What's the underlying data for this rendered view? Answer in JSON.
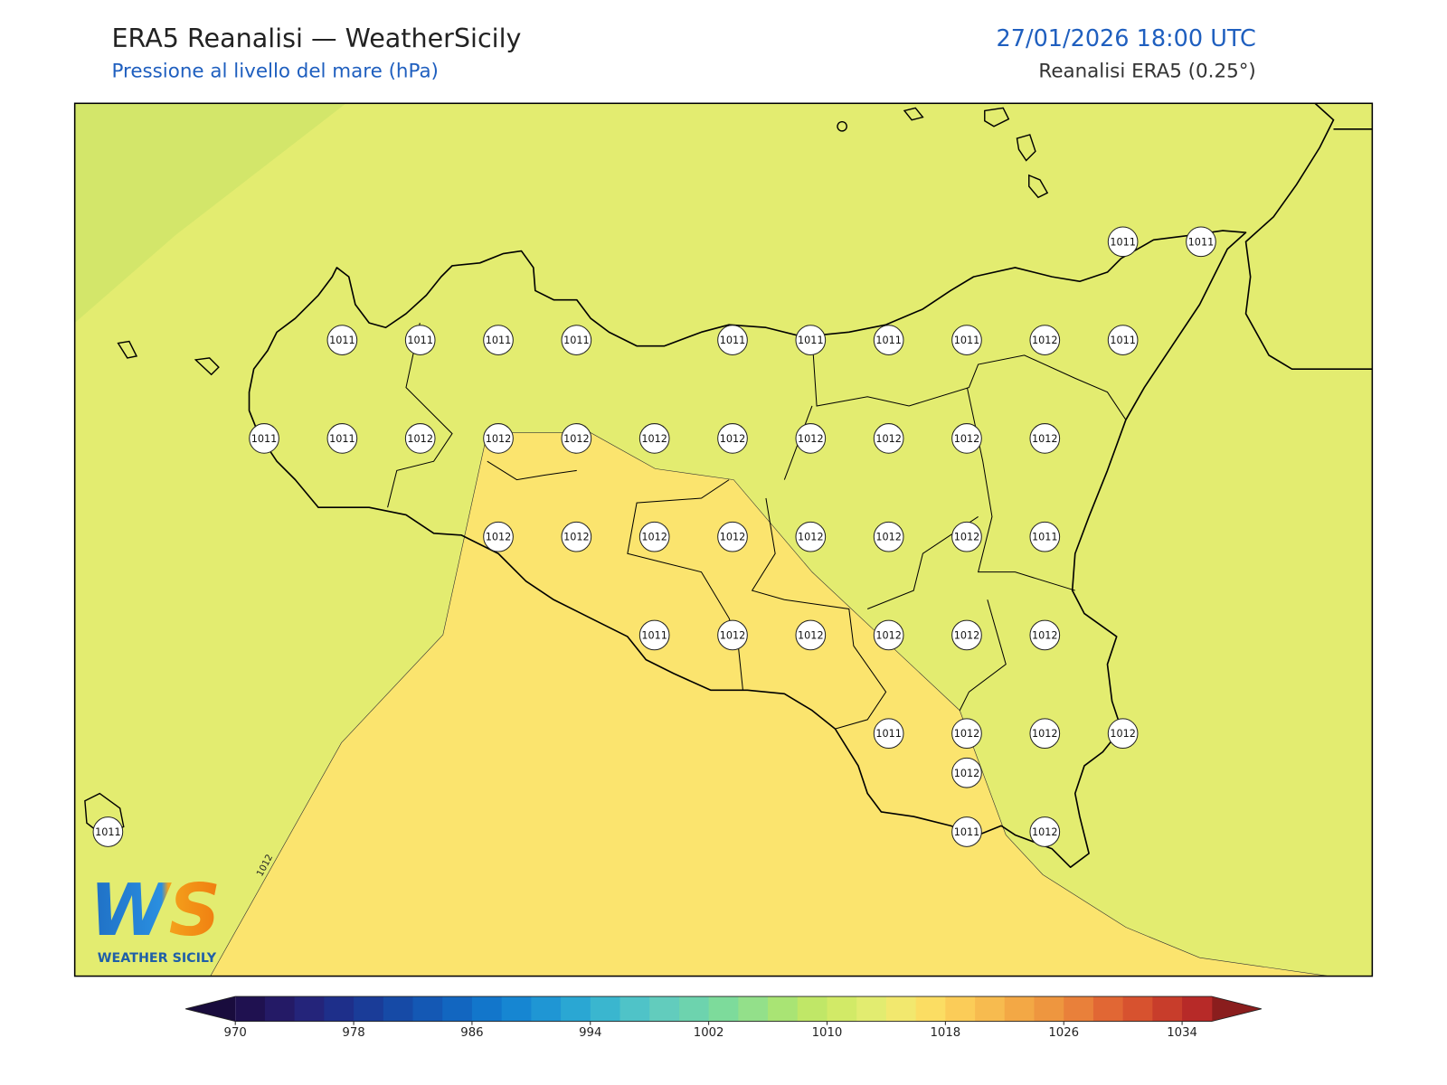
{
  "header": {
    "title": "ERA5 Reanalisi — WeatherSicily",
    "subtitle": "Pressione al livello del mare (hPa)",
    "datetime": "27/01/2026 18:00 UTC",
    "source": "Reanalisi ERA5 (0.25°)"
  },
  "map": {
    "stations": [
      1011,
      1011,
      1011,
      1011,
      1011,
      1011,
      1011,
      1011,
      1011,
      1011,
      1012,
      1011,
      1011,
      1011,
      1012,
      1012,
      1012,
      1012,
      1012,
      1012,
      1012,
      1012,
      1012,
      1012,
      1012,
      1012,
      1012,
      1012,
      1012,
      1012,
      1011,
      1011,
      1012,
      1012,
      1012,
      1012,
      1012,
      1011,
      1012,
      1012,
      1012,
      1011,
      1011,
      1012,
      1012
    ],
    "contour_label": "1012"
  },
  "colorbar": {
    "ticks": [
      970,
      978,
      986,
      994,
      1002,
      1010,
      1018,
      1026,
      1034
    ],
    "colors": [
      "#1f1150",
      "#241a66",
      "#24247a",
      "#1e2f8a",
      "#1a3c98",
      "#164aa6",
      "#1458b4",
      "#1266c0",
      "#1276cb",
      "#1686d2",
      "#1f96d4",
      "#2aa7d3",
      "#3ab6cf",
      "#4fc3c8",
      "#62ccbd",
      "#6dd3ae",
      "#7ddb9b",
      "#93e08a",
      "#a9e474",
      "#c0e767",
      "#d2ea67",
      "#e2ec70",
      "#f2e86e",
      "#fbdd63",
      "#fbcc58",
      "#f7bb4f",
      "#f3a845",
      "#ee963f",
      "#e9803a",
      "#e16734",
      "#d7522f",
      "#c83d2b",
      "#b72a28"
    ],
    "under": "#190c3d",
    "over": "#8a1d1d"
  },
  "logo": {
    "mark": "WS",
    "text": "WEATHER SICILY"
  }
}
